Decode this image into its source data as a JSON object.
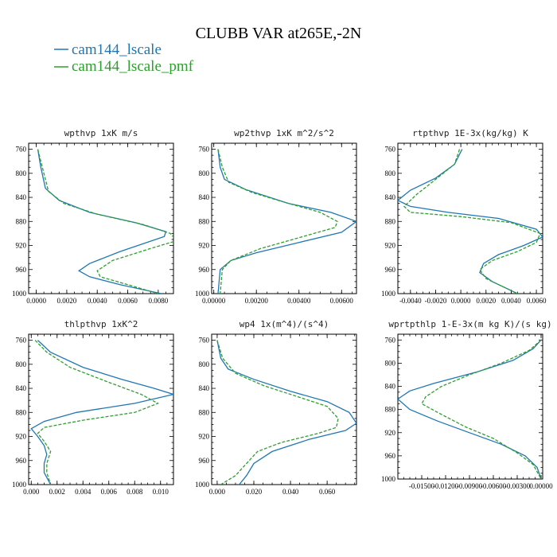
{
  "title": "CLUBB VAR at265E,-2N",
  "legend": [
    {
      "label": "cam144_lscale",
      "color": "#1f77b4",
      "dash": "solid"
    },
    {
      "label": "cam144_lscale_pmf",
      "color": "#2ca02c",
      "dash": "dashed"
    }
  ],
  "y_ticks": [
    "760",
    "800",
    "840",
    "880",
    "920",
    "960",
    "1000"
  ],
  "chart_data": [
    {
      "type": "line",
      "title": "wpthvp  1xK m/s",
      "xlim": [
        -0.0005,
        0.009
      ],
      "ylim": [
        1000,
        750
      ],
      "x_tick_values": [
        0,
        0.002,
        0.004,
        0.006,
        0.008
      ],
      "x_tick_labels": [
        "0.0000",
        "0.0020",
        "0.0040",
        "0.0060",
        "0.0080"
      ],
      "series": [
        {
          "name": "cam144_lscale",
          "points": [
            [
              0.0001,
              760
            ],
            [
              0.0003,
              790
            ],
            [
              0.0006,
              825
            ],
            [
              0.0015,
              845
            ],
            [
              0.0035,
              865
            ],
            [
              0.0065,
              882
            ],
            [
              0.0085,
              897
            ],
            [
              0.0084,
              905
            ],
            [
              0.0055,
              930
            ],
            [
              0.0035,
              950
            ],
            [
              0.0028,
              962
            ],
            [
              0.0035,
              972
            ],
            [
              0.0055,
              985
            ],
            [
              0.0082,
              1000
            ]
          ]
        },
        {
          "name": "cam144_lscale_pmf",
          "points": [
            [
              0.0001,
              760
            ],
            [
              0.0004,
              790
            ],
            [
              0.0008,
              830
            ],
            [
              0.0018,
              850
            ],
            [
              0.004,
              868
            ],
            [
              0.007,
              885
            ],
            [
              0.0088,
              900
            ],
            [
              0.0092,
              912
            ],
            [
              0.0075,
              925
            ],
            [
              0.005,
              945
            ],
            [
              0.004,
              962
            ],
            [
              0.0042,
              972
            ],
            [
              0.006,
              985
            ],
            [
              0.008,
              1000
            ]
          ]
        }
      ]
    },
    {
      "type": "line",
      "title": "wp2thvp  1xK m^2/s^2",
      "xlim": [
        -0.0001,
        0.0067
      ],
      "ylim": [
        1000,
        750
      ],
      "x_tick_values": [
        0,
        0.002,
        0.004,
        0.006
      ],
      "x_tick_labels": [
        "0.00000",
        "0.00200",
        "0.00400",
        "0.00600"
      ],
      "series": [
        {
          "name": "cam144_lscale",
          "points": [
            [
              0.0002,
              760
            ],
            [
              0.0003,
              790
            ],
            [
              0.0005,
              810
            ],
            [
              0.0015,
              827
            ],
            [
              0.0035,
              850
            ],
            [
              0.0055,
              865
            ],
            [
              0.0067,
              880
            ],
            [
              0.006,
              898
            ],
            [
              0.004,
              915
            ],
            [
              0.002,
              932
            ],
            [
              0.0008,
              945
            ],
            [
              0.0003,
              960
            ],
            [
              0.0002,
              1000
            ]
          ]
        },
        {
          "name": "cam144_lscale_pmf",
          "points": [
            [
              0.0002,
              760
            ],
            [
              0.0004,
              790
            ],
            [
              0.0007,
              815
            ],
            [
              0.0018,
              832
            ],
            [
              0.0035,
              850
            ],
            [
              0.005,
              865
            ],
            [
              0.0058,
              880
            ],
            [
              0.0057,
              890
            ],
            [
              0.0042,
              905
            ],
            [
              0.0022,
              925
            ],
            [
              0.0008,
              945
            ],
            [
              0.0004,
              960
            ],
            [
              0.0003,
              1000
            ]
          ]
        }
      ]
    },
    {
      "type": "line",
      "title": "rtpthvp  1E-3x(kg/kg) K",
      "xlim": [
        -0.005,
        0.0065
      ],
      "ylim": [
        1000,
        750
      ],
      "x_tick_values": [
        -0.004,
        -0.002,
        0,
        0.002,
        0.004,
        0.006
      ],
      "x_tick_labels": [
        "-0.0040",
        "-0.0020",
        "0.0000",
        "0.0020",
        "0.0040",
        "0.0060"
      ],
      "series": [
        {
          "name": "cam144_lscale",
          "points": [
            [
              0.0001,
              760
            ],
            [
              -0.0005,
              785
            ],
            [
              -0.002,
              808
            ],
            [
              -0.004,
              828
            ],
            [
              -0.005,
              845
            ],
            [
              -0.004,
              855
            ],
            [
              -0.001,
              865
            ],
            [
              0.003,
              875
            ],
            [
              0.006,
              893
            ],
            [
              0.0065,
              906
            ],
            [
              0.005,
              920
            ],
            [
              0.003,
              935
            ],
            [
              0.0018,
              950
            ],
            [
              0.0015,
              965
            ],
            [
              0.0025,
              980
            ],
            [
              0.0045,
              1000
            ]
          ]
        },
        {
          "name": "cam144_lscale_pmf",
          "points": [
            [
              -0.0001,
              760
            ],
            [
              -0.0005,
              785
            ],
            [
              -0.002,
              810
            ],
            [
              -0.0035,
              835
            ],
            [
              -0.0045,
              855
            ],
            [
              -0.004,
              865
            ],
            [
              0.0,
              872
            ],
            [
              0.004,
              882
            ],
            [
              0.0063,
              900
            ],
            [
              0.006,
              915
            ],
            [
              0.0045,
              930
            ],
            [
              0.0025,
              945
            ],
            [
              0.0015,
              960
            ],
            [
              0.002,
              975
            ],
            [
              0.0035,
              990
            ],
            [
              0.0045,
              1000
            ]
          ]
        }
      ]
    },
    {
      "type": "line",
      "title": "thlpthvp  1xK^2",
      "xlim": [
        -0.0002,
        0.011
      ],
      "ylim": [
        1000,
        750
      ],
      "x_tick_values": [
        0,
        0.002,
        0.004,
        0.006,
        0.008,
        0.01
      ],
      "x_tick_labels": [
        "0.000",
        "0.002",
        "0.004",
        "0.006",
        "0.008",
        "0.010"
      ],
      "series": [
        {
          "name": "cam144_lscale",
          "points": [
            [
              0.0005,
              760
            ],
            [
              0.0015,
              780
            ],
            [
              0.004,
              805
            ],
            [
              0.007,
              825
            ],
            [
              0.0095,
              840
            ],
            [
              0.011,
              850
            ],
            [
              0.008,
              865
            ],
            [
              0.0035,
              880
            ],
            [
              0.001,
              895
            ],
            [
              0.0,
              907
            ],
            [
              0.0005,
              920
            ],
            [
              0.001,
              935
            ],
            [
              0.0012,
              950
            ],
            [
              0.001,
              965
            ],
            [
              0.001,
              980
            ],
            [
              0.0015,
              1000
            ]
          ]
        },
        {
          "name": "cam144_lscale_pmf",
          "points": [
            [
              0.0003,
              760
            ],
            [
              0.0012,
              780
            ],
            [
              0.003,
              805
            ],
            [
              0.006,
              830
            ],
            [
              0.0085,
              850
            ],
            [
              0.0098,
              865
            ],
            [
              0.008,
              880
            ],
            [
              0.004,
              893
            ],
            [
              0.001,
              905
            ],
            [
              0.0005,
              915
            ],
            [
              0.001,
              928
            ],
            [
              0.0015,
              945
            ],
            [
              0.0012,
              965
            ],
            [
              0.0012,
              980
            ],
            [
              0.0015,
              1000
            ]
          ]
        }
      ]
    },
    {
      "type": "line",
      "title": "wp4  1x(m^4)/(s^4)",
      "xlim": [
        -0.003,
        0.076
      ],
      "ylim": [
        1000,
        750
      ],
      "x_tick_values": [
        0,
        0.02,
        0.04,
        0.06
      ],
      "x_tick_labels": [
        "0.000",
        "0.020",
        "0.040",
        "0.060"
      ],
      "series": [
        {
          "name": "cam144_lscale",
          "points": [
            [
              0.0,
              760
            ],
            [
              0.002,
              790
            ],
            [
              0.006,
              808
            ],
            [
              0.02,
              825
            ],
            [
              0.04,
              845
            ],
            [
              0.06,
              862
            ],
            [
              0.072,
              880
            ],
            [
              0.076,
              898
            ],
            [
              0.07,
              910
            ],
            [
              0.05,
              925
            ],
            [
              0.03,
              945
            ],
            [
              0.02,
              965
            ],
            [
              0.016,
              985
            ],
            [
              0.012,
              1000
            ]
          ]
        },
        {
          "name": "cam144_lscale_pmf",
          "points": [
            [
              0.0,
              760
            ],
            [
              0.003,
              790
            ],
            [
              0.01,
              815
            ],
            [
              0.025,
              835
            ],
            [
              0.045,
              855
            ],
            [
              0.06,
              870
            ],
            [
              0.066,
              890
            ],
            [
              0.065,
              905
            ],
            [
              0.055,
              915
            ],
            [
              0.035,
              930
            ],
            [
              0.022,
              945
            ],
            [
              0.016,
              965
            ],
            [
              0.01,
              985
            ],
            [
              0.002,
              1000
            ]
          ]
        }
      ]
    },
    {
      "type": "line",
      "title": "wprtpthlp  1-E-3x(m kg K)/(s kg)",
      "xlim": [
        -0.018,
        0.0002
      ],
      "ylim": [
        1000,
        750
      ],
      "x_tick_values": [
        -0.015,
        -0.012,
        -0.009,
        -0.006,
        -0.003,
        0
      ],
      "x_tick_labels": [
        "-0.01500",
        "-0.01200",
        "-0.00900",
        "-0.00600",
        "-0.00300",
        "0.00000"
      ],
      "series": [
        {
          "name": "cam144_lscale",
          "points": [
            [
              0.0,
              760
            ],
            [
              -0.001,
              775
            ],
            [
              -0.0035,
              795
            ],
            [
              -0.008,
              815
            ],
            [
              -0.0135,
              835
            ],
            [
              -0.0165,
              848
            ],
            [
              -0.018,
              862
            ],
            [
              -0.0165,
              880
            ],
            [
              -0.013,
              900
            ],
            [
              -0.009,
              920
            ],
            [
              -0.005,
              940
            ],
            [
              -0.002,
              960
            ],
            [
              -0.0005,
              980
            ],
            [
              0.0,
              1000
            ]
          ]
        },
        {
          "name": "cam144_lscale_pmf",
          "points": [
            [
              0.0,
              760
            ],
            [
              -0.0015,
              778
            ],
            [
              -0.005,
              800
            ],
            [
              -0.009,
              820
            ],
            [
              -0.0125,
              840
            ],
            [
              -0.0145,
              858
            ],
            [
              -0.015,
              870
            ],
            [
              -0.013,
              885
            ],
            [
              -0.0095,
              910
            ],
            [
              -0.006,
              930
            ],
            [
              -0.003,
              955
            ],
            [
              -0.001,
              975
            ],
            [
              0.0,
              1000
            ]
          ]
        }
      ]
    }
  ]
}
